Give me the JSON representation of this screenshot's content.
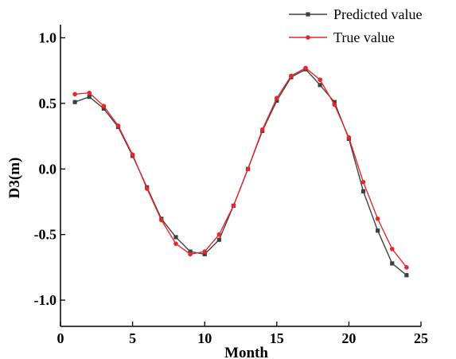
{
  "chart_data": {
    "type": "line",
    "title": "",
    "xlabel": "Month",
    "ylabel": "D3(m)",
    "xlim": [
      0,
      25
    ],
    "ylim": [
      -1.2,
      1.1
    ],
    "x_ticks": [
      0,
      5,
      10,
      15,
      20,
      25
    ],
    "y_ticks": [
      -1.0,
      -0.5,
      0.0,
      0.5,
      1.0
    ],
    "x_tick_labels": [
      "0",
      "5",
      "10",
      "15",
      "20",
      "25"
    ],
    "y_tick_labels": [
      "-1.0",
      "-0.5",
      "0.0",
      "0.5",
      "1.0"
    ],
    "grid": false,
    "legend_position": "top-right",
    "x": [
      1,
      2,
      3,
      4,
      5,
      6,
      7,
      8,
      9,
      10,
      11,
      12,
      13,
      14,
      15,
      16,
      17,
      18,
      19,
      20,
      21,
      22,
      23,
      24
    ],
    "series": [
      {
        "name": "Predicted value",
        "color": "#404040",
        "marker": "square",
        "values": [
          0.51,
          0.55,
          0.46,
          0.32,
          0.1,
          -0.14,
          -0.38,
          -0.52,
          -0.63,
          -0.65,
          -0.54,
          -0.28,
          0.0,
          0.29,
          0.52,
          0.7,
          0.76,
          0.64,
          0.51,
          0.23,
          -0.17,
          -0.47,
          -0.72,
          -0.81
        ]
      },
      {
        "name": "True value",
        "color": "#e8262b",
        "marker": "circle",
        "values": [
          0.57,
          0.58,
          0.48,
          0.33,
          0.11,
          -0.15,
          -0.39,
          -0.57,
          -0.65,
          -0.63,
          -0.5,
          -0.28,
          0.0,
          0.3,
          0.54,
          0.71,
          0.77,
          0.68,
          0.49,
          0.24,
          -0.1,
          -0.38,
          -0.61,
          -0.75
        ]
      }
    ]
  }
}
